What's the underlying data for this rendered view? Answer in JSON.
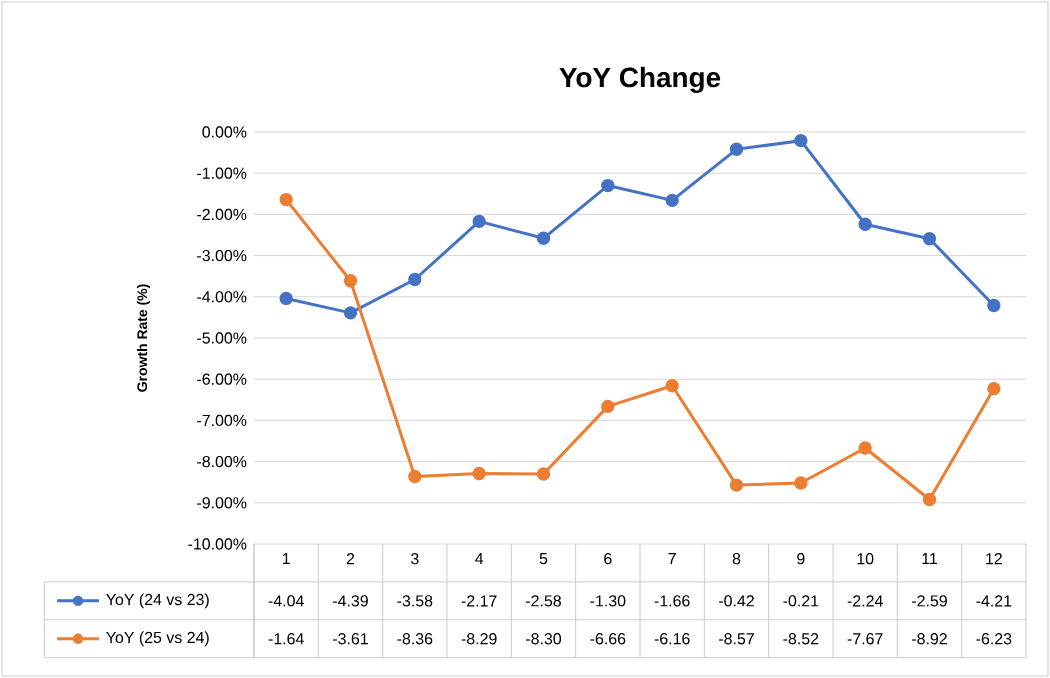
{
  "chart_data": {
    "type": "line",
    "title": "YoY Change",
    "ylabel": "Growth Rate (%)",
    "categories": [
      "1",
      "2",
      "3",
      "4",
      "5",
      "6",
      "7",
      "8",
      "9",
      "10",
      "11",
      "12"
    ],
    "series": [
      {
        "name": "YoY (24 vs 23)",
        "color": "#4472c4",
        "values": [
          -4.04,
          -4.39,
          -3.58,
          -2.17,
          -2.58,
          -1.3,
          -1.66,
          -0.42,
          -0.21,
          -2.24,
          -2.59,
          -4.21
        ],
        "value_labels": [
          "-4.04",
          "-4.39",
          "-3.58",
          "-2.17",
          "-2.58",
          "-1.30",
          "-1.66",
          "-0.42",
          "-0.21",
          "-2.24",
          "-2.59",
          "-4.21"
        ]
      },
      {
        "name": "YoY (25 vs 24)",
        "color": "#ed7d31",
        "values": [
          -1.64,
          -3.61,
          -8.36,
          -8.29,
          -8.3,
          -6.66,
          -6.16,
          -8.57,
          -8.52,
          -7.67,
          -8.92,
          -6.23
        ],
        "value_labels": [
          "-1.64",
          "-3.61",
          "-8.36",
          "-8.29",
          "-8.30",
          "-6.66",
          "-6.16",
          "-8.57",
          "-8.52",
          "-7.67",
          "-8.92",
          "-6.23"
        ]
      }
    ],
    "ylim": [
      -10,
      0
    ],
    "yticks": [
      {
        "value": 0,
        "label": "0.00%"
      },
      {
        "value": -1,
        "label": "-1.00%"
      },
      {
        "value": -2,
        "label": "-2.00%"
      },
      {
        "value": -3,
        "label": "-3.00%"
      },
      {
        "value": -4,
        "label": "-4.00%"
      },
      {
        "value": -5,
        "label": "-5.00%"
      },
      {
        "value": -6,
        "label": "-6.00%"
      },
      {
        "value": -7,
        "label": "-7.00%"
      },
      {
        "value": -8,
        "label": "-8.00%"
      },
      {
        "value": -9,
        "label": "-9.00%"
      },
      {
        "value": -10,
        "label": "-10.00%"
      }
    ],
    "grid": "y",
    "legend": "bottom",
    "marker": "circle",
    "line_style": "solid"
  }
}
